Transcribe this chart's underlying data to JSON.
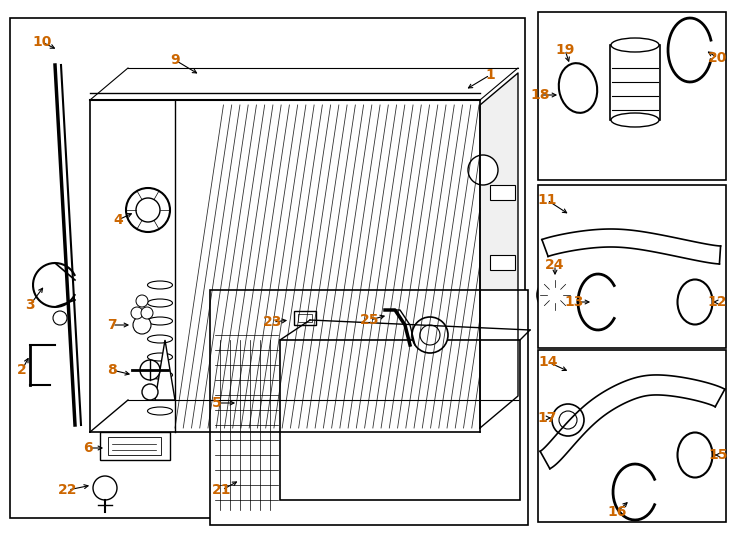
{
  "bg_color": "#ffffff",
  "line_color": "#000000",
  "label_color": "#cc6600",
  "fig_width": 7.34,
  "fig_height": 5.4,
  "dpi": 100
}
